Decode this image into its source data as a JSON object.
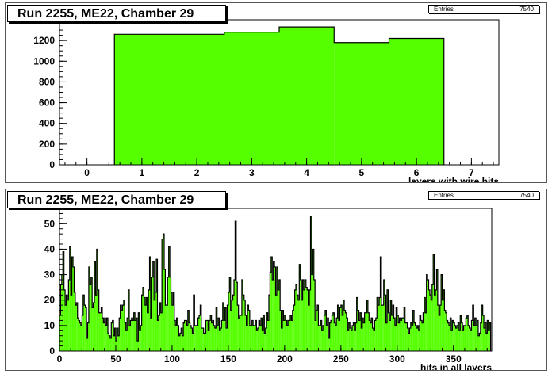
{
  "colors": {
    "fill": "#55ff00",
    "line": "#000000",
    "pad_border": "#555555"
  },
  "panels": [
    {
      "title": "Run 2255, ME22, Chamber 29",
      "stats": {
        "label": "Entries",
        "value": "7540"
      }
    },
    {
      "title": "Run 2255, ME22, Chamber 29",
      "stats": {
        "label": "Entries",
        "value": "7540"
      }
    }
  ],
  "chart_data": [
    {
      "type": "bar",
      "title": "Run 2255, ME22, Chamber 29",
      "xlabel": "layers with wire hits",
      "ylabel": "",
      "xlim": [
        -0.5,
        7.5
      ],
      "ylim": [
        0,
        1400
      ],
      "xticks": [
        0,
        1,
        2,
        3,
        4,
        5,
        6,
        7
      ],
      "yticks": [
        0,
        200,
        400,
        600,
        800,
        1000,
        1200
      ],
      "categories": [
        1,
        2,
        3,
        4,
        5,
        6
      ],
      "values": [
        1260,
        1260,
        1280,
        1330,
        1180,
        1220
      ],
      "entries": 7540,
      "grid": false
    },
    {
      "type": "bar",
      "title": "Run 2255, ME22, Chamber 29",
      "xlabel": "hits in all layers",
      "ylabel": "",
      "xlim": [
        0,
        384
      ],
      "ylim": [
        0,
        56
      ],
      "xticks": [
        0,
        50,
        100,
        150,
        200,
        250,
        300,
        350
      ],
      "yticks": [
        0,
        10,
        20,
        30,
        40,
        50
      ],
      "values": [
        14,
        26,
        30,
        39,
        24,
        18,
        22,
        20,
        28,
        41,
        22,
        37,
        33,
        23,
        18,
        19,
        13,
        12,
        11,
        10,
        14,
        22,
        18,
        17,
        5,
        11,
        33,
        26,
        29,
        17,
        19,
        35,
        22,
        40,
        24,
        15,
        15,
        17,
        13,
        11,
        13,
        10,
        13,
        7,
        6,
        5,
        11,
        12,
        6,
        9,
        4,
        9,
        6,
        13,
        18,
        16,
        18,
        20,
        11,
        8,
        13,
        24,
        10,
        12,
        13,
        12,
        15,
        12,
        13,
        4,
        15,
        8,
        10,
        22,
        25,
        21,
        18,
        21,
        15,
        24,
        37,
        13,
        29,
        35,
        20,
        23,
        36,
        12,
        14,
        19,
        15,
        44,
        46,
        32,
        18,
        18,
        29,
        41,
        29,
        23,
        18,
        23,
        12,
        10,
        13,
        10,
        6,
        7,
        9,
        6,
        11,
        12,
        12,
        10,
        16,
        11,
        10,
        9,
        7,
        22,
        10,
        10,
        10,
        13,
        14,
        18,
        9,
        9,
        7,
        7,
        12,
        12,
        8,
        12,
        14,
        11,
        12,
        10,
        9,
        17,
        10,
        13,
        8,
        9,
        12,
        19,
        12,
        17,
        9,
        18,
        23,
        29,
        16,
        20,
        22,
        28,
        51,
        27,
        18,
        13,
        14,
        14,
        28,
        22,
        20,
        14,
        10,
        18,
        16,
        10,
        10,
        12,
        10,
        10,
        12,
        8,
        9,
        12,
        10,
        13,
        8,
        14,
        7,
        9,
        15,
        12,
        22,
        31,
        37,
        28,
        35,
        33,
        22,
        33,
        24,
        28,
        16,
        9,
        16,
        12,
        14,
        12,
        10,
        12,
        12,
        14,
        12,
        16,
        18,
        24,
        26,
        22,
        20,
        34,
        28,
        20,
        28,
        24,
        28,
        25,
        24,
        18,
        24,
        53,
        30,
        40,
        28,
        12,
        16,
        18,
        10,
        10,
        12,
        8,
        10,
        14,
        16,
        10,
        13,
        5,
        11,
        12,
        14,
        15,
        11,
        10,
        13,
        18,
        12,
        17,
        18,
        14,
        20,
        16,
        15,
        13,
        8,
        11,
        9,
        8,
        10,
        11,
        8,
        11,
        21,
        16,
        12,
        15,
        9,
        13,
        11,
        15,
        15,
        20,
        15,
        12,
        11,
        13,
        9,
        8,
        12,
        13,
        21,
        18,
        21,
        37,
        18,
        18,
        28,
        22,
        11,
        24,
        15,
        12,
        20,
        14,
        18,
        13,
        10,
        17,
        14,
        11,
        13,
        12,
        13,
        13,
        17,
        11,
        11,
        9,
        7,
        9,
        11,
        10,
        16,
        11,
        10,
        9,
        10,
        8,
        14,
        12,
        11,
        15,
        21,
        15,
        30,
        28,
        24,
        22,
        20,
        26,
        38,
        22,
        24,
        32,
        18,
        14,
        18,
        30,
        20,
        24,
        16,
        15,
        12,
        11,
        10,
        13,
        8,
        12,
        11,
        10,
        9,
        10,
        11,
        8,
        14,
        11,
        8,
        10,
        10,
        13,
        14,
        10,
        9,
        8,
        12,
        18,
        10,
        13,
        10,
        12,
        6,
        7,
        11,
        18,
        14,
        9,
        11,
        7,
        12,
        8,
        11
      ],
      "entries": 7540,
      "grid": false
    }
  ]
}
